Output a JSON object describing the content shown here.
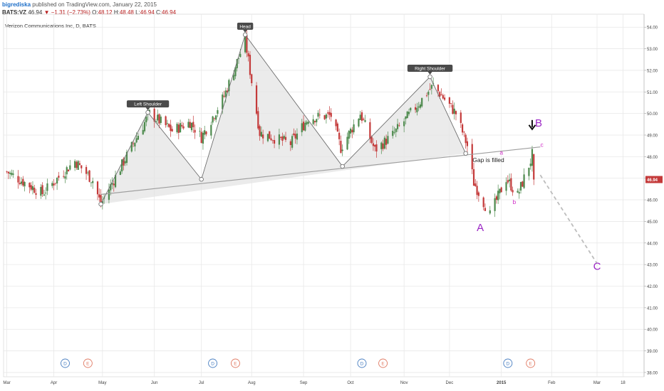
{
  "header": {
    "user": "bigrediska",
    "published": "published on TradingView.com, January 22, 2015",
    "symbol": "BATS:VZ",
    "last": "46.94",
    "change": "▼ −1.31 (−2.73%)",
    "o_label": "O:",
    "o": "48.12",
    "h_label": "H:",
    "h": "48.48",
    "l_label": "L:",
    "l": "46.94",
    "c_label": "C:",
    "c": "46.94"
  },
  "chart_title": "Verizon Communications Inc, D, BATS",
  "chart_data": {
    "type": "candlestick",
    "price_axis": {
      "range": [
        37.8,
        54.6
      ],
      "ticks": [
        "38.00",
        "39.00",
        "40.00",
        "41.00",
        "42.00",
        "43.00",
        "44.00",
        "45.00",
        "46.00",
        "47.00",
        "48.00",
        "49.00",
        "50.00",
        "51.00",
        "52.00",
        "53.00",
        "54.00"
      ],
      "last_price_label": "46.94"
    },
    "time_axis": {
      "range": [
        "2014-03-01",
        "2015-03-31"
      ],
      "ticks": [
        {
          "label": "Mar",
          "date": "2014-03-03",
          "bold": false
        },
        {
          "label": "Apr",
          "date": "2014-04-01",
          "bold": false
        },
        {
          "label": "May",
          "date": "2014-05-01",
          "bold": false
        },
        {
          "label": "Jun",
          "date": "2014-06-02",
          "bold": false
        },
        {
          "label": "Jul",
          "date": "2014-07-01",
          "bold": false
        },
        {
          "label": "Aug",
          "date": "2014-08-01",
          "bold": false
        },
        {
          "label": "Sep",
          "date": "2014-09-02",
          "bold": false
        },
        {
          "label": "Oct",
          "date": "2014-10-01",
          "bold": false
        },
        {
          "label": "Nov",
          "date": "2014-11-03",
          "bold": false
        },
        {
          "label": "Dec",
          "date": "2014-12-01",
          "bold": false
        },
        {
          "label": "2015",
          "date": "2015-01-02",
          "bold": true
        },
        {
          "label": "Feb",
          "date": "2015-02-02",
          "bold": false
        },
        {
          "label": "Mar",
          "date": "2015-03-02",
          "bold": false
        },
        {
          "label": "18",
          "date": "2015-03-18",
          "bold": false
        }
      ]
    },
    "price_path_start": "2014-03-03",
    "price_path_end": "2015-01-22",
    "price_path": [
      {
        "date": "2014-03-03",
        "price": 47.3
      },
      {
        "date": "2014-03-25",
        "price": 46.3
      },
      {
        "date": "2014-04-14",
        "price": 47.8
      },
      {
        "date": "2014-04-25",
        "price": 46.9
      },
      {
        "date": "2014-04-30",
        "price": 45.8
      },
      {
        "date": "2014-05-30",
        "price": 50.0
      },
      {
        "date": "2014-06-13",
        "price": 49.2
      },
      {
        "date": "2014-06-24",
        "price": 49.6
      },
      {
        "date": "2014-07-01",
        "price": 48.9
      },
      {
        "date": "2014-07-15",
        "price": 50.8
      },
      {
        "date": "2014-07-28",
        "price": 53.4
      },
      {
        "date": "2014-08-06",
        "price": 49.1
      },
      {
        "date": "2014-08-25",
        "price": 48.6
      },
      {
        "date": "2014-09-05",
        "price": 49.8
      },
      {
        "date": "2014-09-19",
        "price": 49.9
      },
      {
        "date": "2014-09-25",
        "price": 48.4
      },
      {
        "date": "2014-10-07",
        "price": 50.0
      },
      {
        "date": "2014-10-16",
        "price": 48.3
      },
      {
        "date": "2014-10-27",
        "price": 49.0
      },
      {
        "date": "2014-11-21",
        "price": 51.3
      },
      {
        "date": "2014-12-05",
        "price": 50.0
      },
      {
        "date": "2014-12-12",
        "price": 48.5
      },
      {
        "date": "2014-12-16",
        "price": 46.8
      },
      {
        "date": "2014-12-26",
        "price": 45.3
      },
      {
        "date": "2015-01-05",
        "price": 47.0
      },
      {
        "date": "2015-01-12",
        "price": 46.2
      },
      {
        "date": "2015-01-20",
        "price": 47.8
      },
      {
        "date": "2015-01-21",
        "price": 48.1
      },
      {
        "date": "2015-01-22",
        "price": 46.94
      }
    ],
    "colors": {
      "up": "#4d8a4d",
      "down": "#c43a3a",
      "neckline": "#9e9e9e",
      "pattern_fill": "#e4e4e4",
      "pattern_line": "#6e6e6e",
      "projection": "#bdbdbd",
      "purple": "#9b26c4",
      "pink": "#d12ec8"
    },
    "pattern_points": [
      {
        "date": "2014-04-30",
        "price": 45.8
      },
      {
        "date": "2014-05-29",
        "price": 50.05
      },
      {
        "date": "2014-07-01",
        "price": 46.95
      },
      {
        "date": "2014-07-28",
        "price": 53.65
      },
      {
        "date": "2014-09-26",
        "price": 47.55
      },
      {
        "date": "2014-11-19",
        "price": 51.7
      },
      {
        "date": "2014-12-11",
        "price": 48.15
      }
    ],
    "neckline": [
      {
        "date": "2014-04-30",
        "price": 46.25
      },
      {
        "date": "2015-01-26",
        "price": 48.45
      }
    ],
    "projection": [
      {
        "date": "2015-01-26",
        "price": 47.15
      },
      {
        "date": "2015-03-02",
        "price": 43.05
      }
    ],
    "annotations": [
      {
        "text": "Left Shoulder",
        "date": "2014-05-29",
        "price": 50.05,
        "style": "callout"
      },
      {
        "text": "Head",
        "date": "2014-07-28",
        "price": 53.65,
        "style": "callout"
      },
      {
        "text": "Right Shoulder",
        "date": "2014-11-19",
        "price": 51.7,
        "style": "callout"
      },
      {
        "text": "Gap is filled",
        "date": "2014-12-25",
        "price": 47.75,
        "style": "mono"
      },
      {
        "text": "A",
        "date": "2014-12-20",
        "price": 44.55,
        "style": "purple-big"
      },
      {
        "text": "B",
        "date": "2015-01-25",
        "price": 49.4,
        "style": "purple-big"
      },
      {
        "text": "C",
        "date": "2015-03-02",
        "price": 42.75,
        "style": "purple-big"
      },
      {
        "text": "a",
        "date": "2015-01-02",
        "price": 48.1,
        "style": "pink-small"
      },
      {
        "text": "b",
        "date": "2015-01-10",
        "price": 45.8,
        "style": "pink-small"
      },
      {
        "text": "c",
        "date": "2015-01-27",
        "price": 48.45,
        "style": "pink-small"
      }
    ],
    "arrow_down": {
      "date": "2015-01-21",
      "price": 49.5
    },
    "events": [
      {
        "type": "D",
        "date": "2014-04-08"
      },
      {
        "type": "E",
        "date": "2014-04-22"
      },
      {
        "type": "D",
        "date": "2014-07-08"
      },
      {
        "type": "E",
        "date": "2014-07-22"
      },
      {
        "type": "D",
        "date": "2014-10-08"
      },
      {
        "type": "E",
        "date": "2014-10-21"
      },
      {
        "type": "D",
        "date": "2015-01-06"
      },
      {
        "type": "E",
        "date": "2015-01-20"
      }
    ]
  }
}
